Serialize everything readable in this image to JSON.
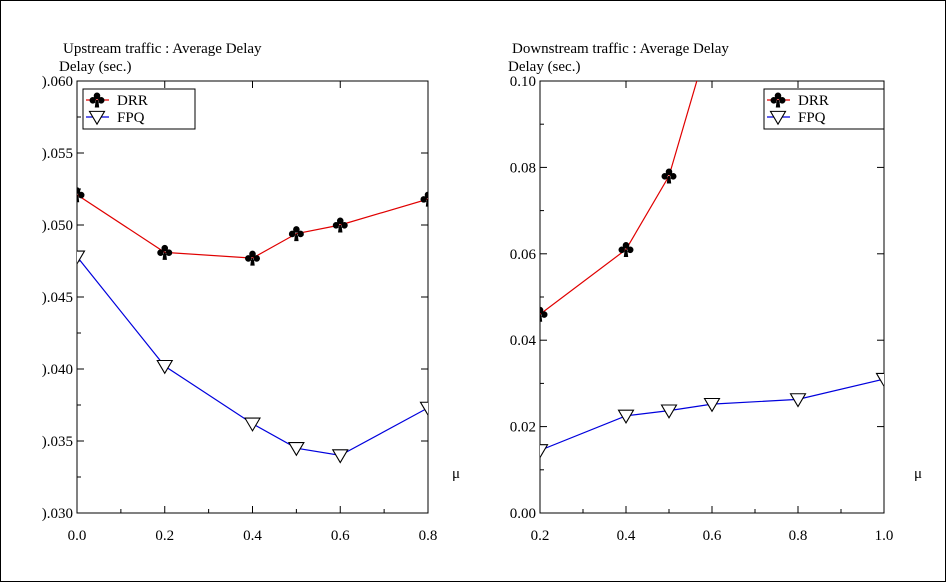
{
  "chart_data": [
    {
      "type": "line",
      "title": "Upstream traffic : Average Delay",
      "ylabel": "Delay (sec.)",
      "xlabel": "μ",
      "xlim": [
        0.0,
        0.8
      ],
      "ylim": [
        0.03,
        0.06
      ],
      "x_ticks": [
        0.0,
        0.2,
        0.4,
        0.6,
        0.8
      ],
      "x_tick_labels": [
        "0.0",
        "0.2",
        "0.4",
        "0.6",
        "0.8"
      ],
      "y_ticks": [
        0.03,
        0.035,
        0.04,
        0.045,
        0.05,
        0.055,
        0.06
      ],
      "y_tick_labels": [
        ").030",
        ").035",
        ").040",
        ").045",
        ").050",
        ").055",
        ").060"
      ],
      "legend_position": "top-left",
      "grid": false,
      "series": [
        {
          "name": "DRR",
          "color": "#e00000",
          "marker": "club",
          "x": [
            0.0,
            0.2,
            0.4,
            0.5,
            0.6,
            0.8
          ],
          "y": [
            0.0521,
            0.0481,
            0.0477,
            0.0494,
            0.05,
            0.0518
          ]
        },
        {
          "name": "FPQ",
          "color": "#0000dd",
          "marker": "triangle-down",
          "x": [
            0.0,
            0.2,
            0.4,
            0.5,
            0.6,
            0.8
          ],
          "y": [
            0.0478,
            0.0402,
            0.0362,
            0.0345,
            0.034,
            0.0373
          ]
        }
      ]
    },
    {
      "type": "line",
      "title": "Downstream traffic : Average Delay",
      "ylabel": "Delay (sec.)",
      "xlabel": "μ",
      "xlim": [
        0.2,
        1.0
      ],
      "ylim": [
        0.0,
        0.1
      ],
      "x_ticks": [
        0.2,
        0.4,
        0.6,
        0.8,
        1.0
      ],
      "x_tick_labels": [
        "0.2",
        "0.4",
        "0.6",
        "0.8",
        "1.0"
      ],
      "y_ticks": [
        0.0,
        0.02,
        0.04,
        0.06,
        0.08,
        0.1
      ],
      "y_tick_labels": [
        "0.00",
        "0.02",
        "0.04",
        "0.06",
        "0.08",
        "0.10"
      ],
      "legend_position": "top-right",
      "grid": false,
      "series": [
        {
          "name": "DRR",
          "color": "#e00000",
          "marker": "club",
          "x": [
            0.2,
            0.4,
            0.5,
            0.6
          ],
          "y": [
            0.046,
            0.061,
            0.078,
            0.112
          ]
        },
        {
          "name": "FPQ",
          "color": "#0000dd",
          "marker": "triangle-down",
          "x": [
            0.2,
            0.4,
            0.5,
            0.6,
            0.8,
            1.0
          ],
          "y": [
            0.0145,
            0.0225,
            0.0237,
            0.0252,
            0.0263,
            0.031
          ]
        }
      ]
    }
  ]
}
